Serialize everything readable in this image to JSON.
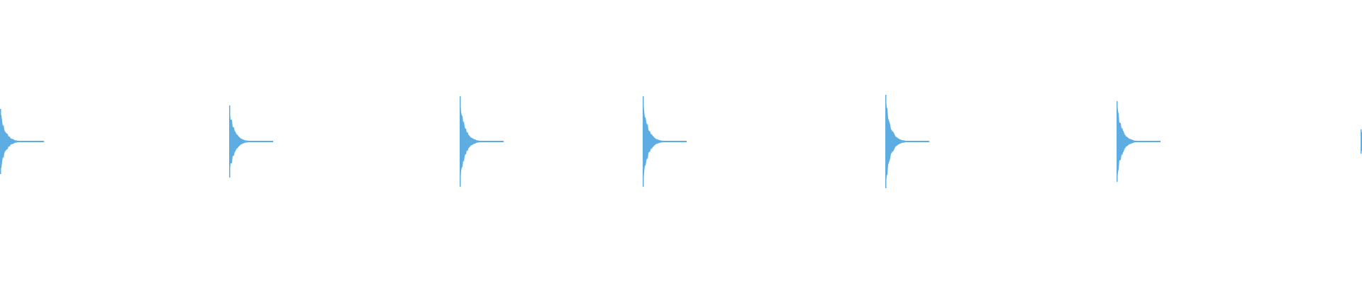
{
  "waveform": {
    "color": "#5dade2",
    "background": "#ffffff",
    "bursts": [
      {
        "peak_amplitude": 0.23
      },
      {
        "peak_amplitude": 0.255
      },
      {
        "peak_amplitude": 0.32
      },
      {
        "peak_amplitude": 0.32
      },
      {
        "peak_amplitude": 0.33
      },
      {
        "peak_amplitude": 0.285
      },
      {
        "peak_amplitude": 0.085
      }
    ]
  }
}
